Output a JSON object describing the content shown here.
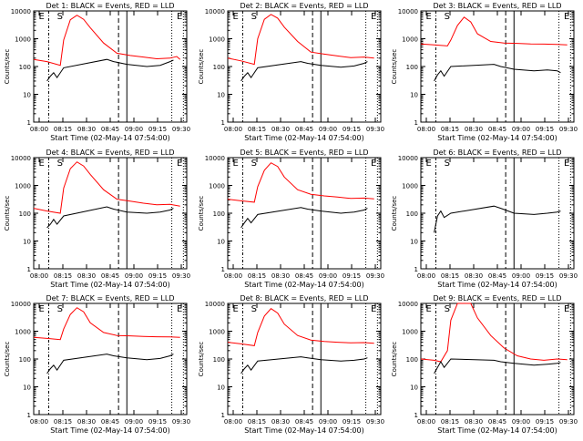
{
  "page": {
    "panel_count": 9
  },
  "colors": {
    "events_series": "#000000",
    "lld_series": "#ff0000",
    "axes": "#000000",
    "background": "#ffffff"
  },
  "chart_data": [
    {
      "type": "line",
      "title": "Det 1: BLACK = Events, RED = LLD",
      "xlabel": "Start Time (02-May-14 07:54:00)",
      "ylabel": "Counts/sec",
      "yscale": "log",
      "ylim": [
        1,
        10000
      ],
      "ytick_labels": [
        "1",
        "10",
        "100",
        "1000",
        "10000"
      ],
      "xlim_minutes": [
        -4,
        42
      ],
      "xtick_labels": [
        "08:00",
        "08:15",
        "08:30",
        "08:45",
        "09:00",
        "09:15",
        "09:30"
      ],
      "flags": [
        "E",
        "S",
        "E"
      ],
      "series": [
        {
          "name": "LLD",
          "color": "red",
          "x": [
            -4,
            0,
            4,
            5,
            7,
            9,
            11,
            13,
            17,
            21,
            25,
            29,
            33,
            37,
            39,
            40
          ],
          "y": [
            180,
            150,
            110,
            900,
            4800,
            7000,
            5000,
            2500,
            700,
            300,
            250,
            220,
            190,
            200,
            230,
            180
          ]
        },
        {
          "name": "Events",
          "color": "black",
          "x": [
            0,
            1,
            2,
            3,
            5,
            18,
            20,
            24,
            30,
            34,
            37,
            38
          ],
          "y": [
            30,
            45,
            60,
            40,
            90,
            180,
            150,
            120,
            100,
            110,
            150,
            170
          ]
        }
      ]
    },
    {
      "type": "line",
      "title": "Det 2: BLACK = Events, RED = LLD",
      "xlabel": "Start Time (02-May-14 07:54:00)",
      "ylabel": "Counts/sec",
      "yscale": "log",
      "ylim": [
        1,
        10000
      ],
      "ytick_labels": [
        "1",
        "10",
        "100",
        "1000",
        "10000"
      ],
      "xlim_minutes": [
        -4,
        42
      ],
      "xtick_labels": [
        "08:00",
        "08:15",
        "08:30",
        "08:45",
        "09:00",
        "09:15",
        "09:30"
      ],
      "flags": [
        "E",
        "S",
        "E"
      ],
      "series": [
        {
          "name": "LLD",
          "color": "red",
          "x": [
            -4,
            0,
            4,
            5,
            7,
            9,
            11,
            13,
            17,
            21,
            25,
            29,
            33,
            37,
            40
          ],
          "y": [
            200,
            160,
            120,
            1000,
            5000,
            7500,
            5500,
            2600,
            800,
            330,
            280,
            240,
            210,
            220,
            200
          ]
        },
        {
          "name": "Events",
          "color": "black",
          "x": [
            0,
            1,
            2,
            3,
            5,
            18,
            20,
            24,
            30,
            34,
            37,
            38
          ],
          "y": [
            30,
            45,
            60,
            40,
            90,
            150,
            130,
            110,
            95,
            105,
            130,
            150
          ]
        }
      ]
    },
    {
      "type": "line",
      "title": "Det 3: BLACK = Events, RED = LLD",
      "xlabel": "Start Time (02-May-14 07:54:00)",
      "ylabel": "Counts/sec",
      "yscale": "log",
      "ylim": [
        1,
        10000
      ],
      "ytick_labels": [
        "1",
        "10",
        "100",
        "1000",
        "10000"
      ],
      "xlim_minutes": [
        -4,
        42
      ],
      "xtick_labels": [
        "08:00",
        "08:15",
        "08:30",
        "08:45",
        "09:00",
        "09:15",
        "09:30"
      ],
      "flags": [
        "E",
        "S",
        "E"
      ],
      "series": [
        {
          "name": "LLD",
          "color": "red",
          "x": [
            -4,
            0,
            4,
            5,
            7,
            9,
            11,
            13,
            17,
            21,
            25,
            29,
            33,
            37,
            40
          ],
          "y": [
            650,
            600,
            550,
            900,
            3000,
            6000,
            4000,
            1500,
            800,
            700,
            680,
            650,
            640,
            620,
            600
          ]
        },
        {
          "name": "Events",
          "color": "black",
          "x": [
            0,
            1,
            2,
            3,
            5,
            18,
            20,
            24,
            30,
            34,
            37,
            38
          ],
          "y": [
            30,
            50,
            70,
            45,
            100,
            120,
            100,
            80,
            70,
            75,
            70,
            60
          ]
        }
      ]
    },
    {
      "type": "line",
      "title": "Det 4: BLACK = Events, RED = LLD",
      "xlabel": "Start Time (02-May-14 07:54:00)",
      "ylabel": "Counts/sec",
      "yscale": "log",
      "ylim": [
        1,
        10000
      ],
      "ytick_labels": [
        "1",
        "10",
        "100",
        "1000",
        "10000"
      ],
      "xlim_minutes": [
        -4,
        42
      ],
      "xtick_labels": [
        "08:00",
        "08:15",
        "08:30",
        "08:45",
        "09:00",
        "09:15",
        "09:30"
      ],
      "flags": [
        "E",
        "S",
        "E"
      ],
      "series": [
        {
          "name": "LLD",
          "color": "red",
          "x": [
            -4,
            0,
            4,
            5,
            7,
            9,
            11,
            13,
            17,
            21,
            25,
            29,
            33,
            37,
            40
          ],
          "y": [
            150,
            120,
            100,
            800,
            4000,
            7000,
            5000,
            2500,
            700,
            320,
            270,
            230,
            200,
            210,
            180
          ]
        },
        {
          "name": "Events",
          "color": "black",
          "x": [
            0,
            1,
            2,
            3,
            5,
            18,
            20,
            24,
            30,
            34,
            37,
            38
          ],
          "y": [
            30,
            40,
            60,
            40,
            80,
            170,
            140,
            110,
            100,
            110,
            130,
            150
          ]
        }
      ]
    },
    {
      "type": "line",
      "title": "Det 5: BLACK = Events, RED = LLD",
      "xlabel": "Start Time (02-May-14 07:54:00)",
      "ylabel": "Counts/sec",
      "yscale": "log",
      "ylim": [
        1,
        10000
      ],
      "ytick_labels": [
        "1",
        "10",
        "100",
        "1000",
        "10000"
      ],
      "xlim_minutes": [
        -4,
        42
      ],
      "xtick_labels": [
        "08:00",
        "08:15",
        "08:30",
        "08:45",
        "09:00",
        "09:15",
        "09:30"
      ],
      "flags": [
        "E",
        "S",
        "E"
      ],
      "series": [
        {
          "name": "LLD",
          "color": "red",
          "x": [
            -4,
            0,
            4,
            5,
            7,
            9,
            11,
            13,
            17,
            21,
            25,
            29,
            33,
            37,
            40
          ],
          "y": [
            320,
            280,
            250,
            900,
            3500,
            6500,
            4800,
            2000,
            700,
            480,
            420,
            380,
            340,
            350,
            330
          ]
        },
        {
          "name": "Events",
          "color": "black",
          "x": [
            0,
            1,
            2,
            3,
            5,
            18,
            20,
            24,
            30,
            34,
            37,
            38
          ],
          "y": [
            30,
            45,
            65,
            45,
            90,
            160,
            140,
            120,
            100,
            110,
            130,
            150
          ]
        }
      ]
    },
    {
      "type": "line",
      "title": "Det 6: BLACK = Events, RED = LLD",
      "xlabel": "Start Time (02-May-14 07:54:00)",
      "ylabel": "Counts/sec",
      "yscale": "log",
      "ylim": [
        1,
        10000
      ],
      "ytick_labels": [
        "1",
        "10",
        "100",
        "1000",
        "10000"
      ],
      "xlim_minutes": [
        -4,
        42
      ],
      "xtick_labels": [
        "08:00",
        "08:15",
        "08:30",
        "08:45",
        "09:00",
        "09:15",
        "09:30"
      ],
      "flags": [
        "E",
        "S",
        "E"
      ],
      "series": [
        {
          "name": "Events",
          "color": "black",
          "x": [
            0,
            1,
            2,
            3,
            5,
            18,
            20,
            24,
            30,
            34,
            37,
            38
          ],
          "y": [
            20,
            80,
            120,
            70,
            100,
            180,
            150,
            100,
            90,
            100,
            110,
            120
          ]
        }
      ]
    },
    {
      "type": "line",
      "title": "Det 7: BLACK = Events, RED = LLD",
      "xlabel": "Start Time (02-May-14 07:54:00)",
      "ylabel": "Counts/sec",
      "yscale": "log",
      "ylim": [
        1,
        10000
      ],
      "ytick_labels": [
        "1",
        "10",
        "100",
        "1000",
        "10000"
      ],
      "xlim_minutes": [
        -4,
        42
      ],
      "xtick_labels": [
        "08:00",
        "08:15",
        "08:30",
        "08:45",
        "09:00",
        "09:15",
        "09:30"
      ],
      "flags": [
        "E",
        "S",
        "E"
      ],
      "series": [
        {
          "name": "LLD",
          "color": "red",
          "x": [
            -4,
            0,
            4,
            5,
            7,
            9,
            11,
            13,
            17,
            21,
            25,
            29,
            33,
            37,
            40
          ],
          "y": [
            600,
            550,
            500,
            1200,
            4000,
            7000,
            5000,
            2000,
            900,
            700,
            680,
            650,
            630,
            620,
            600
          ]
        },
        {
          "name": "Events",
          "color": "black",
          "x": [
            0,
            1,
            2,
            3,
            5,
            18,
            20,
            24,
            30,
            34,
            37,
            38
          ],
          "y": [
            30,
            45,
            60,
            40,
            90,
            150,
            130,
            110,
            95,
            105,
            130,
            150
          ]
        }
      ]
    },
    {
      "type": "line",
      "title": "Det 8: BLACK = Events, RED = LLD",
      "xlabel": "Start Time (02-May-14 07:54:00)",
      "ylabel": "Counts/sec",
      "yscale": "log",
      "ylim": [
        1,
        10000
      ],
      "ytick_labels": [
        "1",
        "10",
        "100",
        "1000",
        "10000"
      ],
      "xlim_minutes": [
        -4,
        42
      ],
      "xtick_labels": [
        "08:00",
        "08:15",
        "08:30",
        "08:45",
        "09:00",
        "09:15",
        "09:30"
      ],
      "flags": [
        "E",
        "S",
        "E"
      ],
      "series": [
        {
          "name": "LLD",
          "color": "red",
          "x": [
            -4,
            0,
            4,
            5,
            7,
            9,
            11,
            13,
            17,
            21,
            25,
            29,
            33,
            37,
            40
          ],
          "y": [
            400,
            350,
            300,
            900,
            3500,
            6500,
            4500,
            1800,
            700,
            480,
            430,
            400,
            380,
            390,
            370
          ]
        },
        {
          "name": "Events",
          "color": "black",
          "x": [
            0,
            1,
            2,
            3,
            5,
            18,
            20,
            24,
            30,
            34,
            37,
            38
          ],
          "y": [
            30,
            45,
            60,
            40,
            85,
            120,
            110,
            95,
            85,
            90,
            100,
            110
          ]
        }
      ]
    },
    {
      "type": "line",
      "title": "Det 9: BLACK = Events, RED = LLD",
      "xlabel": "Start Time (02-May-14 07:54:00)",
      "ylabel": "Counts/sec",
      "yscale": "log",
      "ylim": [
        1,
        10000
      ],
      "ytick_labels": [
        "1",
        "10",
        "100",
        "1000",
        "10000"
      ],
      "xlim_minutes": [
        -4,
        42
      ],
      "xtick_labels": [
        "08:00",
        "08:15",
        "08:30",
        "08:45",
        "09:00",
        "09:15",
        "09:30"
      ],
      "flags": [
        "E",
        "S",
        "E"
      ],
      "series": [
        {
          "name": "LLD",
          "color": "red",
          "x": [
            -4,
            0,
            2,
            4,
            5,
            7,
            9,
            11,
            13,
            17,
            21,
            25,
            29,
            33,
            37,
            40
          ],
          "y": [
            100,
            90,
            80,
            200,
            2500,
            10000,
            10000,
            10000,
            3000,
            700,
            250,
            130,
            100,
            90,
            100,
            95
          ]
        },
        {
          "name": "Events",
          "color": "black",
          "x": [
            0,
            1,
            2,
            3,
            5,
            18,
            20,
            24,
            30,
            34,
            37,
            38
          ],
          "y": [
            30,
            50,
            80,
            50,
            100,
            90,
            80,
            70,
            60,
            65,
            70,
            75
          ]
        }
      ]
    }
  ]
}
